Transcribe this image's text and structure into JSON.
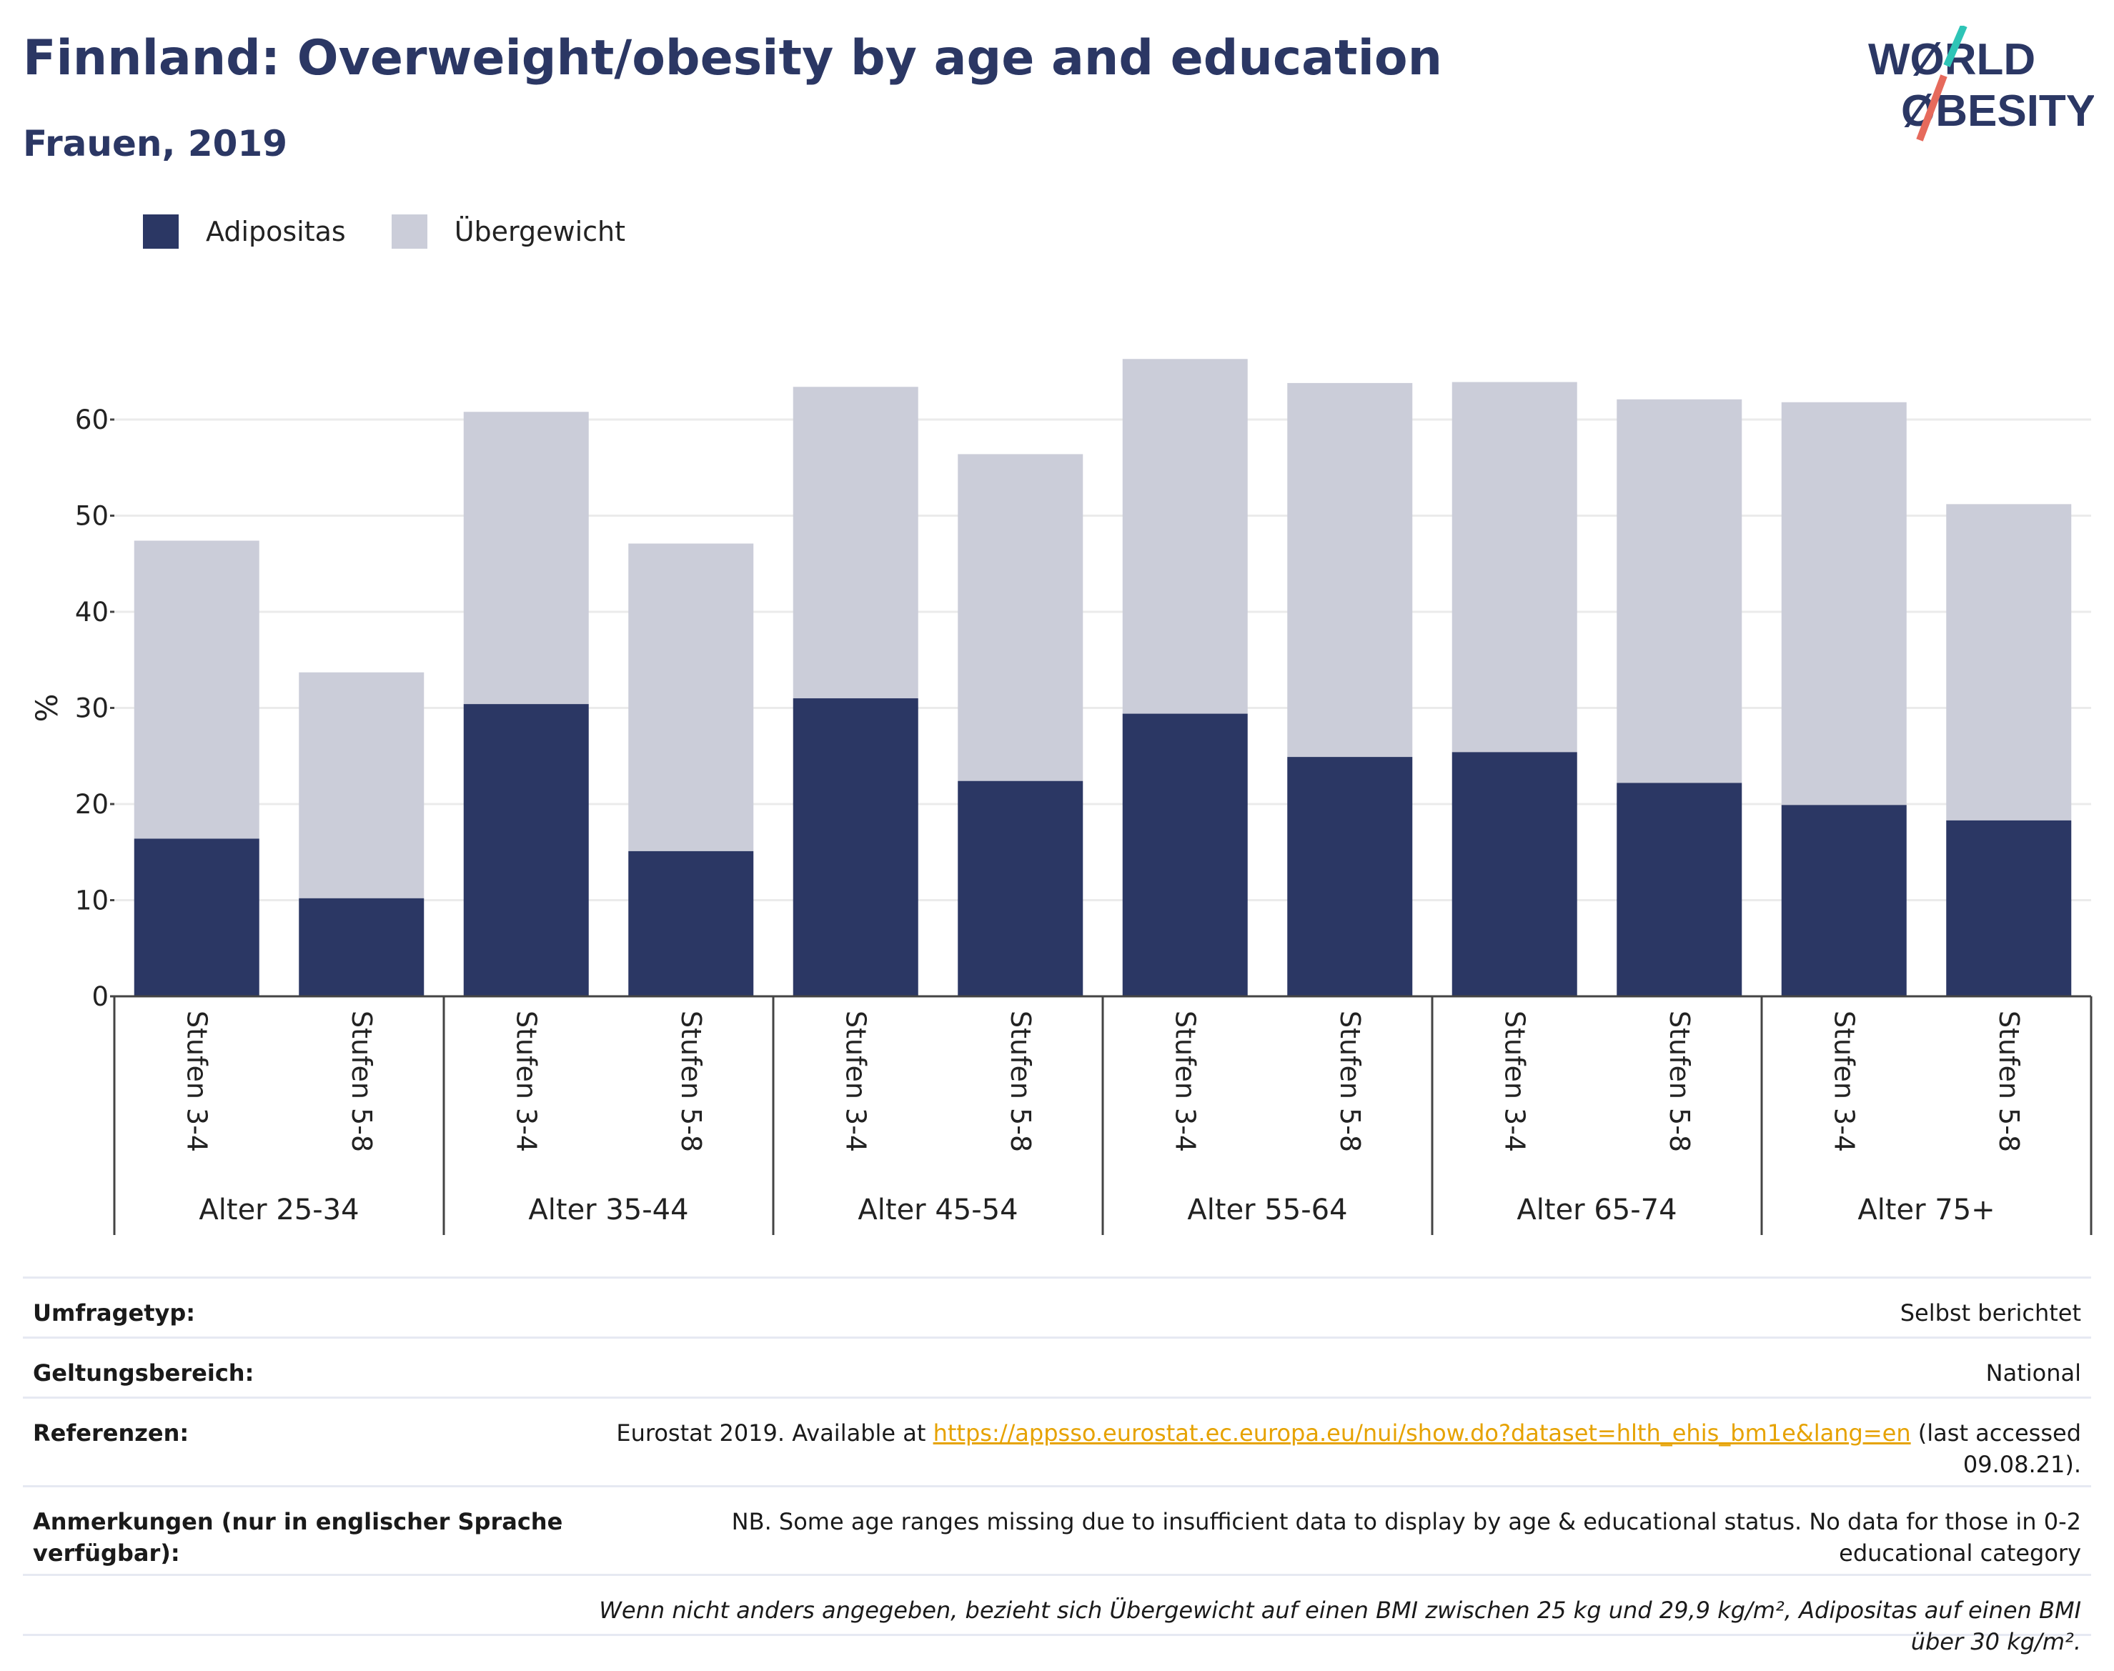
{
  "header": {
    "title": "Finnland: Overweight/obesity by age and education",
    "subtitle": "Frauen, 2019"
  },
  "logo": {
    "line1": "WØRLD",
    "line2": "ØBESITY"
  },
  "colors": {
    "obesity": "#2b3764",
    "overweight": "#cbcdd9",
    "title": "#2b3764",
    "link": "#e6a200"
  },
  "chart_data": {
    "type": "bar",
    "stacked": true,
    "ylabel": "%",
    "ylim": [
      0,
      70
    ],
    "yticks": [
      0,
      10,
      20,
      30,
      40,
      50,
      60
    ],
    "grid": true,
    "legend_position": "top-left",
    "categories": [
      "Stufen 3-4",
      "Stufen 5-8",
      "Stufen 3-4",
      "Stufen 5-8",
      "Stufen 3-4",
      "Stufen 5-8",
      "Stufen 3-4",
      "Stufen 5-8",
      "Stufen 3-4",
      "Stufen 5-8",
      "Stufen 3-4",
      "Stufen 5-8"
    ],
    "groups": [
      "Alter 25-34",
      "Alter 35-44",
      "Alter 45-54",
      "Alter 55-64",
      "Alter 65-74",
      "Alter 75+"
    ],
    "series": [
      {
        "name": "Adipositas",
        "values": [
          16.4,
          10.2,
          30.4,
          15.1,
          31.0,
          22.4,
          29.4,
          24.9,
          25.4,
          22.2,
          19.9,
          18.3
        ]
      },
      {
        "name": "Übergewicht",
        "values": [
          31.0,
          23.5,
          30.4,
          32.0,
          32.4,
          34.0,
          36.9,
          38.9,
          38.5,
          39.9,
          41.9,
          32.9
        ]
      }
    ]
  },
  "info": {
    "survey_type": {
      "label": "Umfragetyp:",
      "value": "Selbst berichtet"
    },
    "scope": {
      "label": "Geltungsbereich:",
      "value": "National"
    },
    "references": {
      "label": "Referenzen:",
      "prefix": "Eurostat 2019. Available at ",
      "link": "https://appsso.eurostat.ec.europa.eu/nui/show.do?dataset=hlth_ehis_bm1e&lang=en",
      "suffix": " (last accessed 09.08.21)."
    },
    "notes": {
      "label": "Anmerkungen (nur in englischer Sprache verfügbar):",
      "value": "NB. Some age ranges missing due to insufficient data to display by age & educational status. No data for those in 0-2 educational category"
    },
    "footnote": "Wenn nicht anders angegeben, bezieht sich Übergewicht auf einen BMI zwischen 25 kg und 29,9 kg/m², Adipositas auf einen BMI über 30 kg/m²."
  }
}
